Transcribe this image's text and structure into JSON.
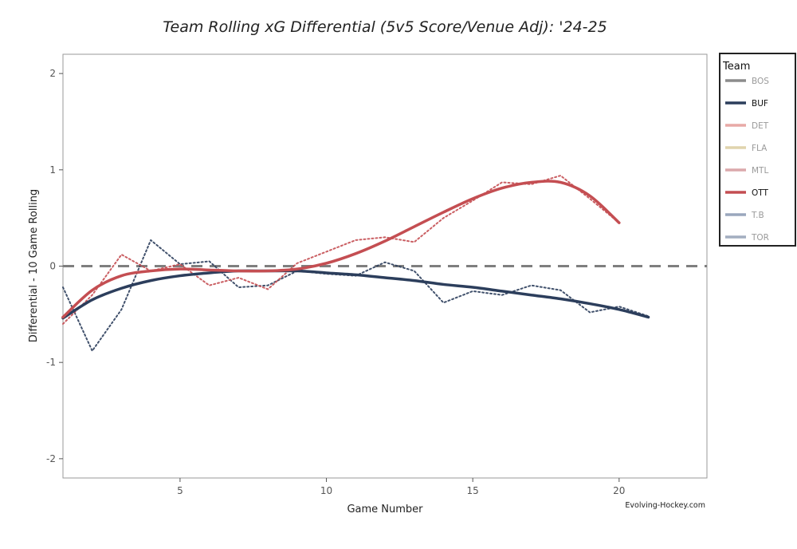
{
  "chart_data": {
    "type": "line",
    "title": "Team Rolling xG Differential (5v5 Score/Venue Adj): '24-25",
    "xlabel": "Game Number",
    "ylabel": "Differential - 10 Game Rolling",
    "credit": "Evolving-Hockey.com",
    "xlim": [
      1,
      23
    ],
    "ylim": [
      -2.2,
      2.2
    ],
    "x_ticks": [
      5,
      10,
      15,
      20
    ],
    "y_ticks": [
      2,
      1,
      0,
      -1,
      -2
    ],
    "reference_line": {
      "y": 0,
      "style": "dashed",
      "color": "#7f7f7f"
    },
    "legend": {
      "title": "Team",
      "position": "right",
      "entries": [
        {
          "label": "BOS",
          "color": "#8c8c8c",
          "active": false
        },
        {
          "label": "BUF",
          "color": "#2c3e5c",
          "active": true
        },
        {
          "label": "DET",
          "color": "#e8a9a6",
          "active": false
        },
        {
          "label": "FLA",
          "color": "#e0d4ad",
          "active": false
        },
        {
          "label": "MTL",
          "color": "#dba8ab",
          "active": false
        },
        {
          "label": "OTT",
          "color": "#c44e52",
          "active": true
        },
        {
          "label": "T.B",
          "color": "#9aa7bd",
          "active": false
        },
        {
          "label": "TOR",
          "color": "#a3aec0",
          "active": false
        }
      ]
    },
    "series": [
      {
        "name": "BUF",
        "kind": "rolling",
        "color": "#2c3e5c",
        "style": "dotted",
        "x": [
          1,
          2,
          3,
          4,
          5,
          6,
          7,
          8,
          9,
          10,
          11,
          12,
          13,
          14,
          15,
          16,
          17,
          18,
          19,
          20,
          21
        ],
        "y": [
          -0.22,
          -0.88,
          -0.45,
          0.27,
          0.02,
          0.05,
          -0.22,
          -0.2,
          -0.05,
          -0.08,
          -0.1,
          0.04,
          -0.05,
          -0.38,
          -0.26,
          -0.3,
          -0.2,
          -0.25,
          -0.48,
          -0.42,
          -0.52
        ]
      },
      {
        "name": "BUF",
        "kind": "smoothed",
        "color": "#2c3e5c",
        "style": "solid",
        "x": [
          1,
          2,
          3,
          4,
          5,
          6,
          7,
          8,
          9,
          10,
          11,
          12,
          13,
          14,
          15,
          16,
          17,
          18,
          19,
          20,
          21
        ],
        "y": [
          -0.54,
          -0.35,
          -0.23,
          -0.15,
          -0.1,
          -0.07,
          -0.05,
          -0.05,
          -0.05,
          -0.07,
          -0.09,
          -0.12,
          -0.15,
          -0.19,
          -0.22,
          -0.26,
          -0.3,
          -0.34,
          -0.39,
          -0.45,
          -0.53
        ]
      },
      {
        "name": "OTT",
        "kind": "rolling",
        "color": "#c44e52",
        "style": "dotted",
        "x": [
          1,
          2,
          3,
          4,
          5,
          6,
          7,
          8,
          9,
          10,
          11,
          12,
          13,
          14,
          15,
          16,
          17,
          18,
          19,
          20
        ],
        "y": [
          -0.6,
          -0.3,
          0.12,
          -0.05,
          0.02,
          -0.2,
          -0.12,
          -0.24,
          0.03,
          0.15,
          0.27,
          0.3,
          0.25,
          0.5,
          0.68,
          0.87,
          0.85,
          0.94,
          0.7,
          0.45
        ]
      },
      {
        "name": "OTT",
        "kind": "smoothed",
        "color": "#c44e52",
        "style": "solid",
        "x": [
          1,
          2,
          3,
          4,
          5,
          6,
          7,
          8,
          9,
          10,
          11,
          12,
          13,
          14,
          15,
          16,
          17,
          18,
          19,
          20
        ],
        "y": [
          -0.53,
          -0.25,
          -0.1,
          -0.05,
          -0.03,
          -0.04,
          -0.05,
          -0.05,
          -0.03,
          0.03,
          0.13,
          0.26,
          0.41,
          0.56,
          0.7,
          0.81,
          0.87,
          0.87,
          0.73,
          0.45
        ]
      }
    ]
  }
}
